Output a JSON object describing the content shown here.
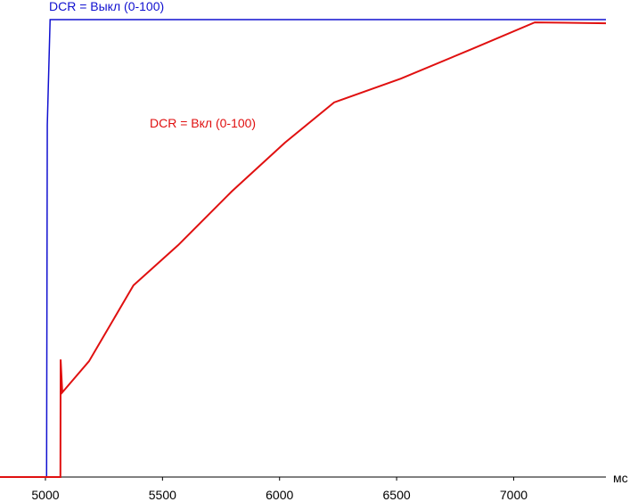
{
  "chart_data": {
    "type": "line",
    "x_label": "мс",
    "xlim": [
      4806,
      7394
    ],
    "xticks": [
      5000,
      5500,
      6000,
      6500,
      7000
    ],
    "ylim": [
      0,
      100
    ],
    "series": [
      {
        "name": "DCR = Выкл (0-100)",
        "color": "#1010d0",
        "x": [
          4806,
          5005,
          5008,
          5020,
          7394
        ],
        "values": [
          0,
          0,
          77,
          100,
          100
        ]
      },
      {
        "name": "DCR = Вкл (0-100)",
        "color": "#e01010",
        "x": [
          4806,
          5064,
          5065,
          5072,
          5186,
          5376,
          5567,
          5795,
          6023,
          6233,
          6518,
          6823,
          7090,
          7394
        ],
        "values": [
          0,
          0,
          25.7,
          18.5,
          25.3,
          41.9,
          50.7,
          62.4,
          73.1,
          81.9,
          87.1,
          93.6,
          99.4,
          99.2
        ]
      }
    ]
  }
}
